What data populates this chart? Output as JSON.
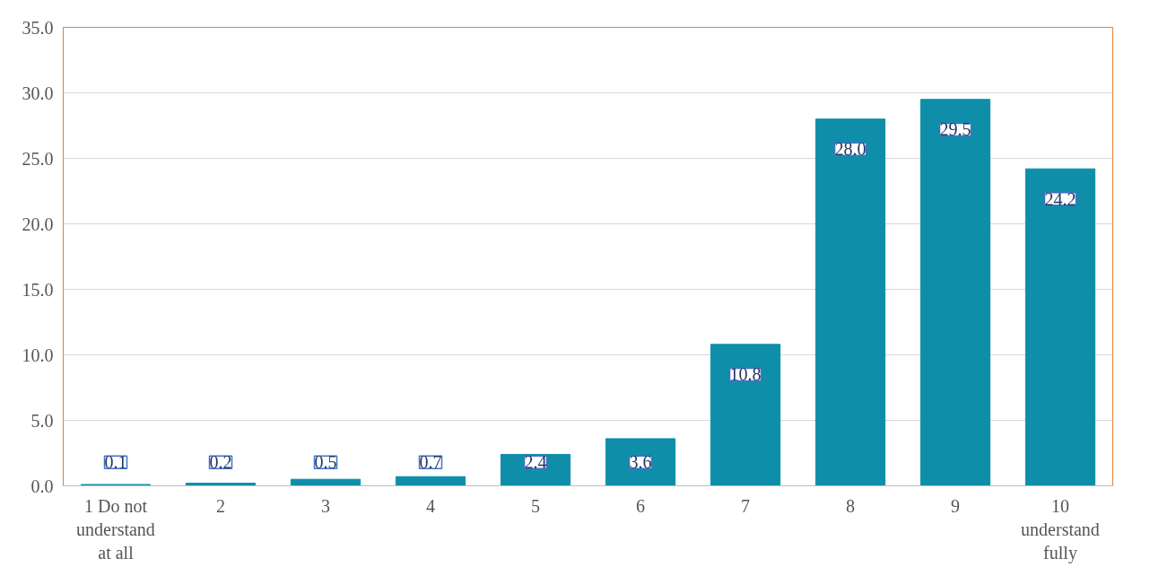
{
  "chart_data": {
    "type": "bar",
    "categories": [
      "1 Do not understand at all",
      "2",
      "3",
      "4",
      "5",
      "6",
      "7",
      "8",
      "9",
      "10 understand fully"
    ],
    "values": [
      0.1,
      0.2,
      0.5,
      0.7,
      2.4,
      3.6,
      10.8,
      28.0,
      29.5,
      24.2
    ],
    "value_labels": [
      "0.1",
      "0.2",
      "0.5",
      "0.7",
      "2.4",
      "3.6",
      "10.8",
      "28.0",
      "29.5",
      "24.2"
    ],
    "color": "#0e8ea9",
    "ylim": [
      0,
      35
    ],
    "yticks": [
      {
        "value": 0,
        "label": "0.0"
      },
      {
        "value": 5,
        "label": "5.0"
      },
      {
        "value": 10,
        "label": "10.0"
      },
      {
        "value": 15,
        "label": "15.0"
      },
      {
        "value": 20,
        "label": "20.0"
      },
      {
        "value": 25,
        "label": "25.0"
      },
      {
        "value": 30,
        "label": "30.0"
      },
      {
        "value": 35,
        "label": "35.0"
      }
    ],
    "grid": "y"
  }
}
